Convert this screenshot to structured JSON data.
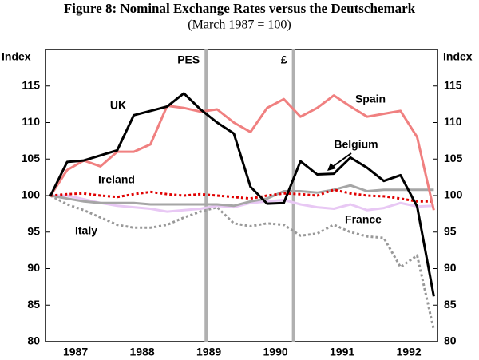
{
  "chart_data": {
    "type": "line",
    "title": "Figure 8: Nominal Exchange Rates versus the Deutschemark",
    "subtitle": "(March 1987 = 100)",
    "y_label": "Index",
    "y2_label": "Index",
    "x": [
      1987.125,
      1987.375,
      1987.625,
      1987.875,
      1988.125,
      1988.375,
      1988.625,
      1988.875,
      1989.125,
      1989.375,
      1989.625,
      1989.875,
      1990.125,
      1990.375,
      1990.625,
      1990.875,
      1991.125,
      1991.375,
      1991.625,
      1991.875,
      1992.125,
      1992.375,
      1992.625,
      1992.875
    ],
    "xlim": [
      1987.05,
      1992.93
    ],
    "xticks": [
      {
        "value": 1987.5,
        "label": "1987"
      },
      {
        "value": 1988.5,
        "label": "1988"
      },
      {
        "value": 1989.5,
        "label": "1989"
      },
      {
        "value": 1990.5,
        "label": "1990"
      },
      {
        "value": 1991.5,
        "label": "1991"
      },
      {
        "value": 1992.5,
        "label": "1992"
      }
    ],
    "ylim": [
      80,
      120
    ],
    "yticks": [
      80,
      85,
      90,
      95,
      100,
      105,
      110,
      115
    ],
    "y2lim": [
      80,
      120
    ],
    "y2ticks": [
      80,
      85,
      90,
      95,
      100,
      105,
      110,
      115
    ],
    "vlines": [
      {
        "x": 1989.46,
        "label": "PES"
      },
      {
        "x": 1990.77,
        "label": "£"
      }
    ],
    "series": [
      {
        "name": "UK",
        "color": "#000000",
        "values": [
          100,
          104.6,
          104.8,
          105.5,
          106.2,
          111,
          111.6,
          112.2,
          114,
          111.8,
          110,
          108.5,
          101.2,
          98.9,
          99,
          104.7,
          102.9,
          103,
          105.2,
          103.8,
          102,
          102.8,
          98.5,
          86.2
        ]
      },
      {
        "name": "Spain",
        "color": "#f08080",
        "values": [
          100,
          103.5,
          104.8,
          104,
          106,
          106,
          107,
          112.3,
          112,
          111.5,
          111.8,
          110,
          108.7,
          112,
          113.2,
          110.8,
          112,
          113.7,
          112.2,
          110.8,
          111.2,
          111.6,
          108,
          98
        ]
      },
      {
        "name": "Belgium",
        "color": "#a6a6a6",
        "values": [
          100,
          99.6,
          99.2,
          99,
          99,
          99,
          98.8,
          98.8,
          98.8,
          98.8,
          98.8,
          98.6,
          99.2,
          99.6,
          100.6,
          100.6,
          100.4,
          100.8,
          101.4,
          100.6,
          100.8,
          100.8,
          100.8,
          100.8
        ]
      },
      {
        "name": "Ireland",
        "color": "#e00000",
        "values": [
          100,
          100.2,
          100.3,
          100,
          99.8,
          100.2,
          100.5,
          100.2,
          100,
          100.2,
          100,
          99.8,
          99.6,
          100,
          100.3,
          100.2,
          100,
          100.8,
          100.3,
          100,
          99.9,
          99.6,
          99.2,
          99.2
        ]
      },
      {
        "name": "France",
        "color": "#e8c8f4",
        "values": [
          100,
          100,
          99.5,
          99,
          98.6,
          98.4,
          98.2,
          97.8,
          98,
          98.2,
          98.6,
          98.4,
          99,
          99.2,
          99.4,
          98.8,
          98.4,
          98.2,
          98.8,
          98,
          98.3,
          99,
          98.5,
          98.6
        ]
      },
      {
        "name": "Italy",
        "color": "#999999",
        "values": [
          100,
          98.8,
          98,
          97,
          96,
          95.6,
          95.6,
          96,
          97,
          97.8,
          98.4,
          96.2,
          95.8,
          96.2,
          96,
          94.5,
          94.8,
          96,
          95,
          94.4,
          94.2,
          90.2,
          91.8,
          81.6
        ]
      }
    ]
  }
}
